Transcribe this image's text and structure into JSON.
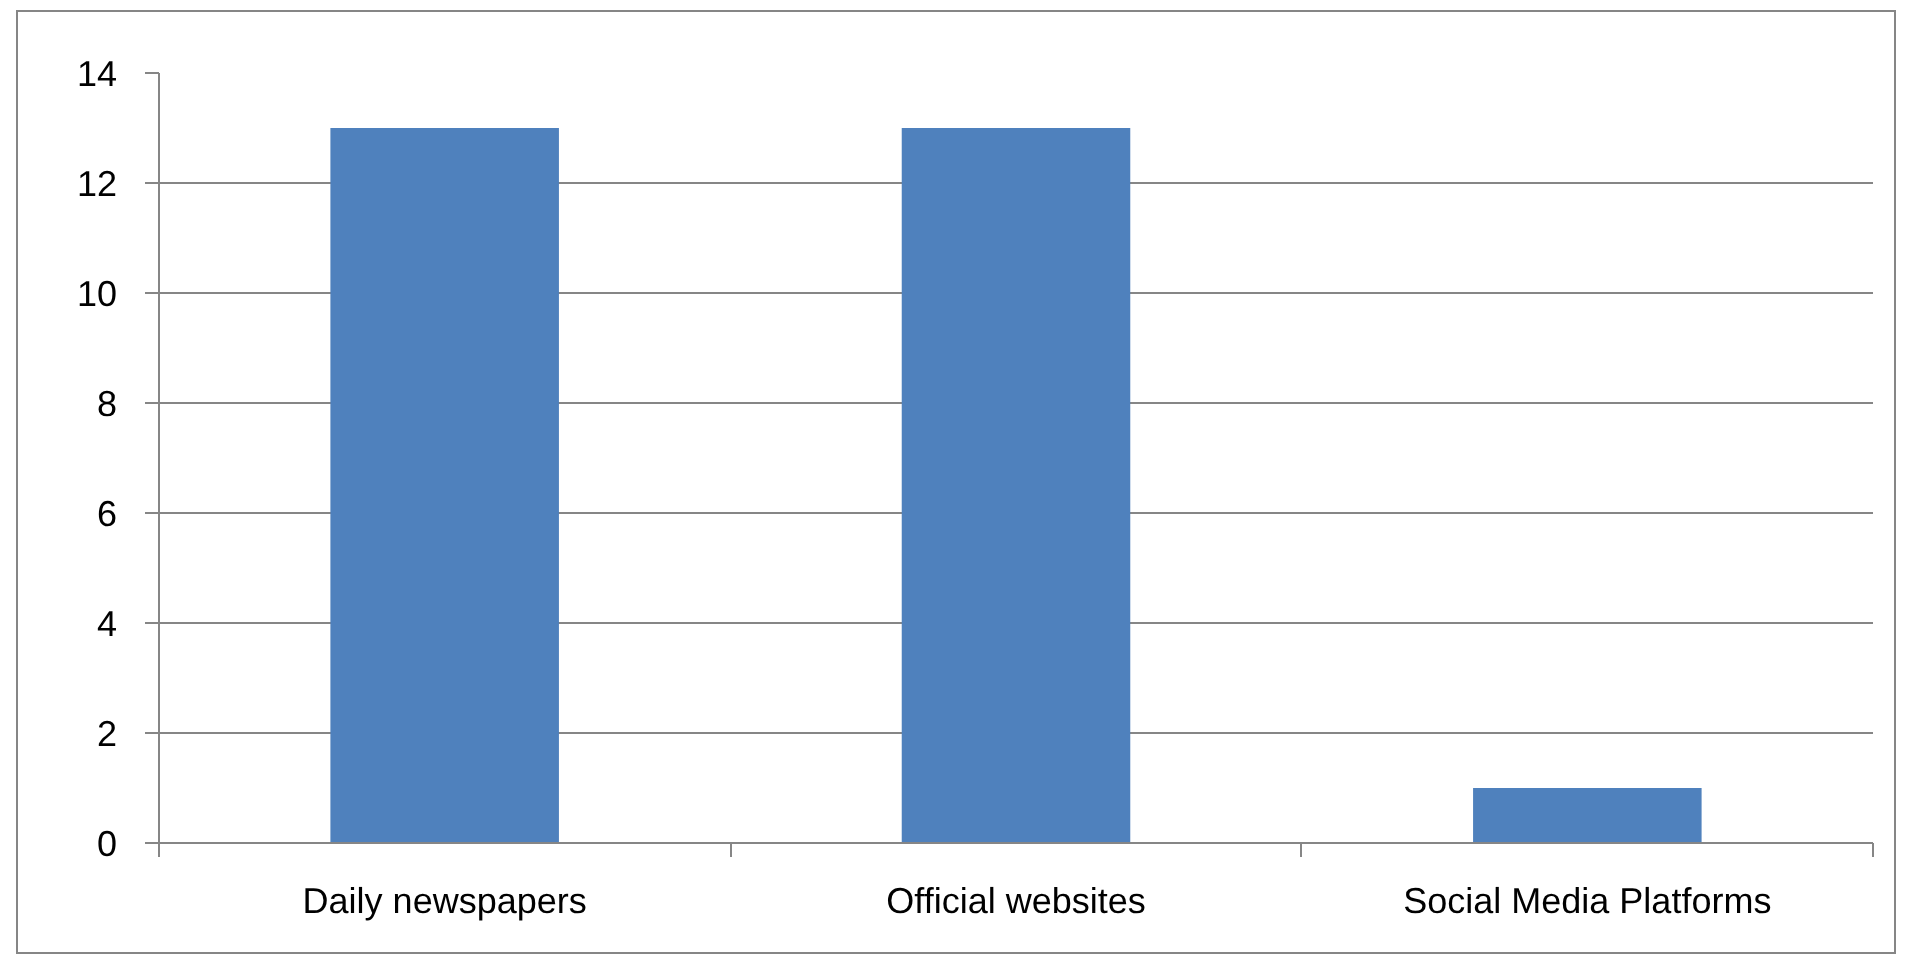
{
  "chart_data": {
    "type": "bar",
    "categories": [
      "Daily newspapers",
      "Official websites",
      "Social Media Platforms"
    ],
    "values": [
      13,
      13,
      1
    ],
    "color": "#4f81bd",
    "ylim": [
      0,
      14
    ],
    "yticks": [
      0,
      2,
      4,
      6,
      8,
      10,
      12,
      14
    ],
    "grid": "y"
  }
}
